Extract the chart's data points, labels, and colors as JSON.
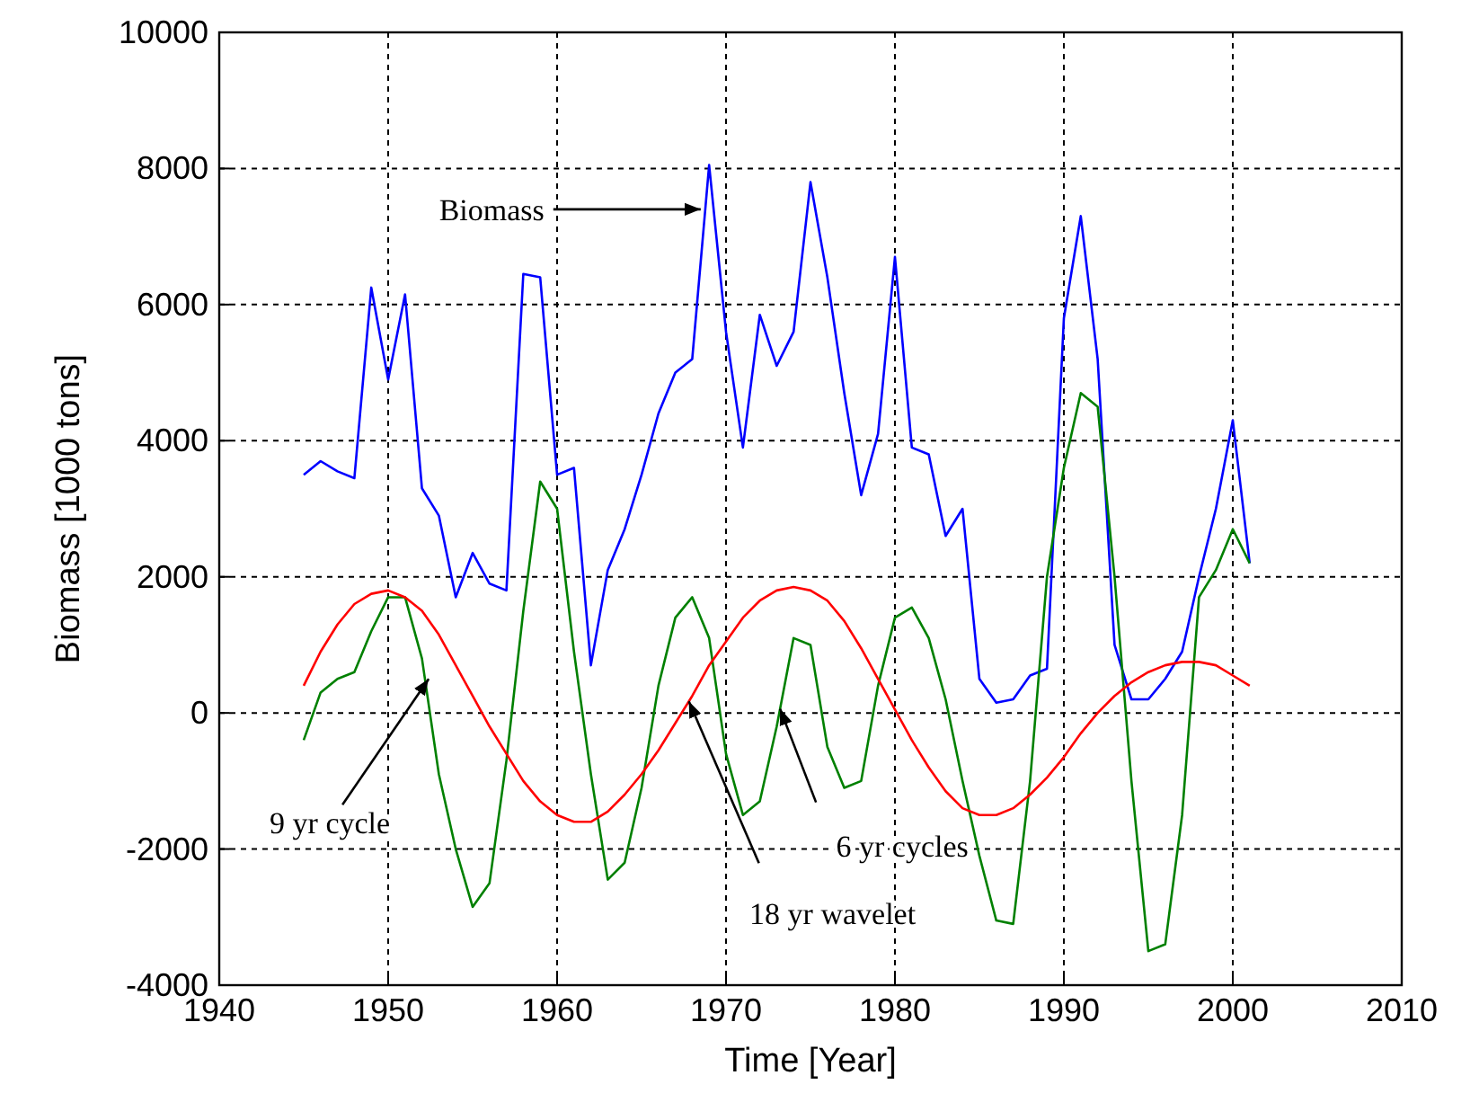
{
  "chart_data": {
    "type": "line",
    "xlabel": "Time [Year]",
    "ylabel": "Biomass [1000 tons]",
    "x": [
      1945,
      1946,
      1947,
      1948,
      1949,
      1950,
      1951,
      1952,
      1953,
      1954,
      1955,
      1956,
      1957,
      1958,
      1959,
      1960,
      1961,
      1962,
      1963,
      1964,
      1965,
      1966,
      1967,
      1968,
      1969,
      1970,
      1971,
      1972,
      1973,
      1974,
      1975,
      1976,
      1977,
      1978,
      1979,
      1980,
      1981,
      1982,
      1983,
      1984,
      1985,
      1986,
      1987,
      1988,
      1989,
      1990,
      1991,
      1992,
      1993,
      1994,
      1995,
      1996,
      1997,
      1998,
      1999,
      2000,
      2001
    ],
    "series": [
      {
        "color": "#0000ff",
        "values": [
          3500,
          3700,
          3550,
          3450,
          6250,
          4900,
          6150,
          3300,
          2900,
          1700,
          2350,
          1900,
          1800,
          6450,
          6400,
          3500,
          3600,
          700,
          2100,
          2700,
          3500,
          4400,
          5000,
          5200,
          8050,
          5600,
          3900,
          5850,
          5100,
          5600,
          7800,
          6400,
          4700,
          3200,
          4100,
          6700,
          3900,
          3800,
          2600,
          3000,
          500,
          150,
          200,
          550,
          650,
          5800,
          7300,
          5200,
          1000,
          200,
          200,
          500,
          900,
          2000,
          3000,
          4300,
          2200
        ]
      },
      {
        "color": "#008000",
        "values": [
          -400,
          300,
          500,
          600,
          1200,
          1700,
          1700,
          800,
          -900,
          -2000,
          -2850,
          -2500,
          -700,
          1500,
          3400,
          3000,
          900,
          -900,
          -2450,
          -2200,
          -1100,
          400,
          1400,
          1700,
          1100,
          -600,
          -1500,
          -1300,
          -200,
          1100,
          1000,
          -500,
          -1100,
          -1000,
          400,
          1400,
          1550,
          1100,
          200,
          -1000,
          -2100,
          -3050,
          -3100,
          -1000,
          2000,
          3600,
          4700,
          4500,
          2000,
          -1000,
          -3500,
          -3400,
          -1500,
          1700,
          2100,
          2700,
          2200
        ]
      },
      {
        "color": "#ff0000",
        "values": [
          400,
          900,
          1300,
          1600,
          1750,
          1800,
          1700,
          1500,
          1150,
          700,
          250,
          -200,
          -600,
          -1000,
          -1300,
          -1500,
          -1600,
          -1600,
          -1450,
          -1200,
          -900,
          -550,
          -150,
          250,
          700,
          1050,
          1400,
          1650,
          1800,
          1850,
          1800,
          1650,
          1350,
          950,
          500,
          50,
          -400,
          -800,
          -1150,
          -1400,
          -1500,
          -1500,
          -1400,
          -1200,
          -950,
          -650,
          -300,
          0,
          250,
          450,
          600,
          700,
          750,
          750,
          700,
          550,
          400
        ]
      }
    ],
    "xlim": [
      1940,
      2010
    ],
    "xticks": [
      1940,
      1950,
      1960,
      1970,
      1980,
      1990,
      2000,
      2010
    ],
    "ylim": [
      -4000,
      10000
    ],
    "yticks": [
      -4000,
      -2000,
      0,
      2000,
      4000,
      6000,
      8000,
      10000
    ],
    "grid": true,
    "marker": "none",
    "line_style": "solid",
    "annotations": [
      {
        "text": "Biomass",
        "x": 1968.5,
        "y": 7400
      },
      {
        "text": "9 yr cycle",
        "x": 1952.4,
        "y": 500
      },
      {
        "text": "18 yr wavelet",
        "x": 1967.8,
        "y": 170
      },
      {
        "text": "6 yr cycles",
        "x": 1973.2,
        "y": 60
      }
    ]
  }
}
